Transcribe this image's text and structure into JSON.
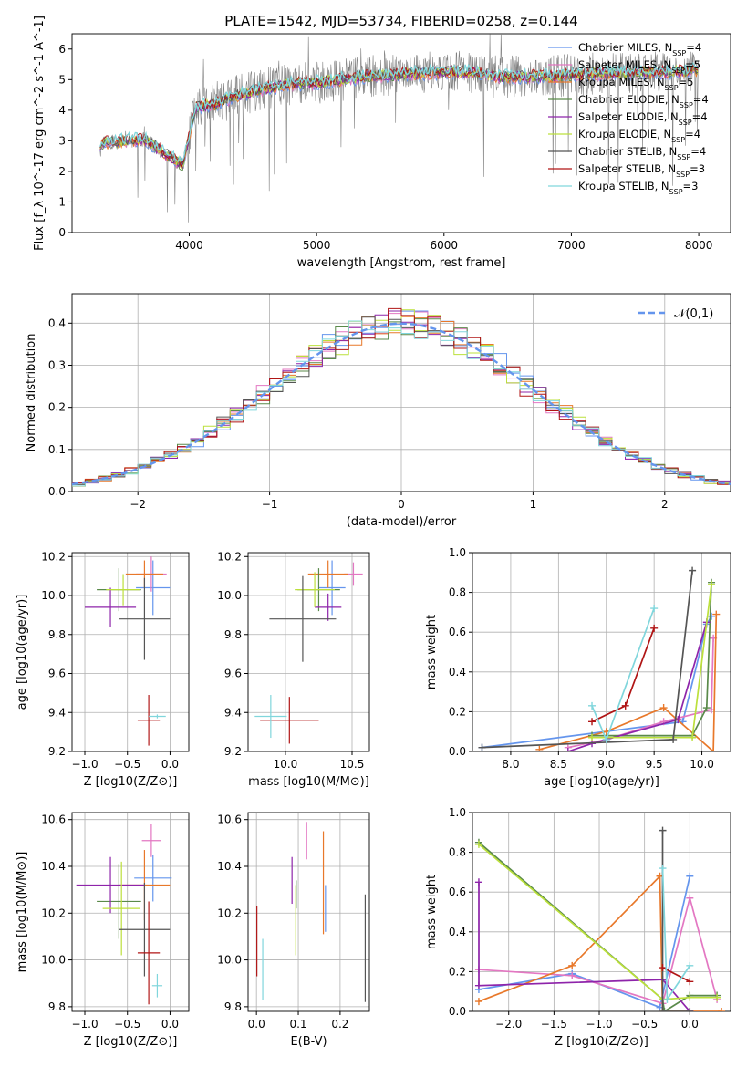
{
  "title": "PLATE=1542, MJD=53734, FIBERID=0258, z=0.144",
  "colors": {
    "chabrier_miles": "#6495ED",
    "salpeter_miles": "#E377C2",
    "kroupa_miles": "#E8782A",
    "chabrier_elodie": "#5A8A4A",
    "salpeter_elodie": "#8E24AA",
    "kroupa_elodie": "#BCE03C",
    "chabrier_stelib": "#555555",
    "salpeter_stelib": "#B01515",
    "kroupa_stelib": "#80D6DC",
    "data": "#808080",
    "grid": "#B0B0B0"
  },
  "chart_data": [
    {
      "id": "spectrum",
      "type": "line",
      "xlabel": "wavelength [Angstrom, rest frame]",
      "ylabel": "Flux [f_λ 10^-17 erg cm^-2 s^-1 A^-1]",
      "xlim": [
        3080,
        8250
      ],
      "ylim": [
        0,
        6.5
      ],
      "xticks": [
        "4000",
        "5000",
        "6000",
        "7000",
        "8000"
      ],
      "yticks": [
        "0",
        "1",
        "2",
        "3",
        "4",
        "5",
        "6"
      ],
      "legend_position": "top-right",
      "continuum": {
        "x": [
          3300,
          3500,
          3650,
          3800,
          3950,
          4050,
          4200,
          4400,
          4600,
          4800,
          5000,
          5200,
          5400,
          5600,
          5800,
          6000,
          6200,
          6400,
          6600,
          6800,
          7000,
          7200,
          7400,
          7600,
          7800,
          8000
        ],
        "y": [
          2.9,
          3.0,
          3.05,
          2.6,
          2.2,
          4.1,
          4.2,
          4.5,
          4.7,
          4.85,
          4.9,
          5.0,
          5.1,
          5.15,
          5.2,
          5.25,
          5.25,
          5.1,
          5.1,
          5.1,
          5.15,
          5.2,
          5.2,
          5.25,
          5.25,
          5.3
        ]
      },
      "legend": [
        {
          "label": "Chabrier MILES",
          "nssp": "4",
          "color_key": "chabrier_miles"
        },
        {
          "label": "Salpeter MILES",
          "nssp": "5",
          "color_key": "salpeter_miles"
        },
        {
          "label": "Kroupa MILES",
          "nssp": "5",
          "color_key": "kroupa_miles"
        },
        {
          "label": "Chabrier ELODIE",
          "nssp": "4",
          "color_key": "chabrier_elodie"
        },
        {
          "label": "Salpeter ELODIE",
          "nssp": "4",
          "color_key": "salpeter_elodie"
        },
        {
          "label": "Kroupa ELODIE",
          "nssp": "4",
          "color_key": "kroupa_elodie"
        },
        {
          "label": "Chabrier STELIB",
          "nssp": "4",
          "color_key": "chabrier_stelib"
        },
        {
          "label": "Salpeter STELIB",
          "nssp": "3",
          "color_key": "salpeter_stelib"
        },
        {
          "label": "Kroupa STELIB",
          "nssp": "3",
          "color_key": "kroupa_stelib"
        }
      ]
    },
    {
      "id": "residuals",
      "type": "histogram",
      "xlabel": "(data-model)/error",
      "ylabel": "Normed distribution",
      "xlim": [
        -2.5,
        2.5
      ],
      "ylim": [
        0,
        0.47
      ],
      "xticks": [
        "−2",
        "−1",
        "0",
        "1",
        "2"
      ],
      "yticks": [
        "0.0",
        "0.1",
        "0.2",
        "0.3",
        "0.4"
      ],
      "bin_width": 0.1,
      "legend": [
        {
          "label": "𝒩(0,1)",
          "style": "dashed",
          "color_key": "chabrier_miles"
        }
      ]
    },
    {
      "id": "age_vs_Z",
      "type": "errorbar",
      "xlabel": "Z [log10(Z/Z⊙)]",
      "ylabel": "age [log10(age/yr)]",
      "xlim": [
        -1.15,
        0.22
      ],
      "ylim": [
        9.2,
        10.22
      ],
      "xticks": [
        "−1.0",
        "−0.5",
        "0.0"
      ],
      "yticks": [
        "9.2",
        "9.4",
        "9.6",
        "9.8",
        "10.0",
        "10.2"
      ],
      "points": [
        {
          "c": "chabrier_miles",
          "x": -0.2,
          "xerr": 0.2,
          "y": 10.04,
          "yerr": 0.14
        },
        {
          "c": "salpeter_miles",
          "x": -0.22,
          "xerr": 0.18,
          "y": 10.11,
          "yerr": 0.09
        },
        {
          "c": "kroupa_miles",
          "x": -0.3,
          "xerr": 0.22,
          "y": 10.11,
          "yerr": 0.07
        },
        {
          "c": "chabrier_elodie",
          "x": -0.6,
          "xerr": 0.26,
          "y": 10.03,
          "yerr": 0.11
        },
        {
          "c": "salpeter_elodie",
          "x": -0.7,
          "xerr": 0.3,
          "y": 9.94,
          "yerr": 0.1
        },
        {
          "c": "kroupa_elodie",
          "x": -0.55,
          "xerr": 0.2,
          "y": 10.03,
          "yerr": 0.08
        },
        {
          "c": "chabrier_stelib",
          "x": -0.3,
          "xerr": 0.3,
          "y": 9.88,
          "yerr": 0.21
        },
        {
          "c": "salpeter_stelib",
          "x": -0.25,
          "xerr": 0.13,
          "y": 9.36,
          "yerr": 0.13
        },
        {
          "c": "kroupa_stelib",
          "x": -0.15,
          "xerr": 0.1,
          "y": 9.38,
          "yerr": 0.01
        }
      ]
    },
    {
      "id": "age_vs_mass",
      "type": "errorbar",
      "xlabel": "mass [log10(M/M⊙)]",
      "ylabel": "",
      "xlim": [
        9.72,
        10.63
      ],
      "ylim": [
        9.2,
        10.22
      ],
      "xticks": [
        "9.5",
        "10.0",
        "10.5"
      ],
      "yticks": [
        "9.2",
        "9.4",
        "9.6",
        "9.8",
        "10.0",
        "10.2"
      ],
      "points": [
        {
          "c": "chabrier_miles",
          "x": 10.35,
          "xerr": 0.1,
          "y": 10.04,
          "yerr": 0.14
        },
        {
          "c": "salpeter_miles",
          "x": 10.51,
          "xerr": 0.07,
          "y": 10.11,
          "yerr": 0.06
        },
        {
          "c": "kroupa_miles",
          "x": 10.32,
          "xerr": 0.15,
          "y": 10.11,
          "yerr": 0.07
        },
        {
          "c": "chabrier_elodie",
          "x": 10.25,
          "xerr": 0.16,
          "y": 10.03,
          "yerr": 0.11
        },
        {
          "c": "salpeter_elodie",
          "x": 10.32,
          "xerr": 0.1,
          "y": 9.94,
          "yerr": 0.07
        },
        {
          "c": "kroupa_elodie",
          "x": 10.22,
          "xerr": 0.15,
          "y": 10.03,
          "yerr": 0.09
        },
        {
          "c": "chabrier_stelib",
          "x": 10.13,
          "xerr": 0.25,
          "y": 9.88,
          "yerr": 0.22
        },
        {
          "c": "salpeter_stelib",
          "x": 10.03,
          "xerr": 0.22,
          "y": 9.36,
          "yerr": 0.12
        },
        {
          "c": "kroupa_stelib",
          "x": 9.89,
          "xerr": 0.12,
          "y": 9.38,
          "yerr": 0.11
        }
      ]
    },
    {
      "id": "weight_vs_age",
      "type": "line",
      "xlabel": "age [log10(age/yr)]",
      "ylabel": "mass weight",
      "xlim": [
        7.6,
        10.3
      ],
      "ylim": [
        0,
        1
      ],
      "xticks": [
        "8.0",
        "8.5",
        "9.0",
        "9.5",
        "10.0"
      ],
      "yticks": [
        "0.0",
        "0.2",
        "0.4",
        "0.6",
        "0.8",
        "1.0"
      ],
      "series": [
        {
          "c": "chabrier_miles",
          "x": [
            7.7,
            9.8,
            10.05,
            10.1
          ],
          "y": [
            0.02,
            0.15,
            0.64,
            0.68
          ]
        },
        {
          "c": "salpeter_miles",
          "x": [
            8.6,
            9.0,
            9.6,
            10.1,
            10.12
          ],
          "y": [
            0.02,
            0.06,
            0.15,
            0.21,
            0.57
          ]
        },
        {
          "c": "kroupa_miles",
          "x": [
            8.3,
            9.0,
            9.6,
            10.12,
            10.15
          ],
          "y": [
            0.01,
            0.1,
            0.22,
            0.0,
            0.69
          ]
        },
        {
          "c": "chabrier_elodie",
          "x": [
            8.85,
            9.9,
            10.05,
            10.1
          ],
          "y": [
            0.08,
            0.08,
            0.22,
            0.85
          ]
        },
        {
          "c": "salpeter_elodie",
          "x": [
            8.6,
            8.85,
            9.75,
            10.05
          ],
          "y": [
            0.0,
            0.04,
            0.16,
            0.65
          ]
        },
        {
          "c": "kroupa_elodie",
          "x": [
            8.85,
            9.9,
            10.1
          ],
          "y": [
            0.07,
            0.07,
            0.84
          ]
        },
        {
          "c": "chabrier_stelib",
          "x": [
            7.7,
            9.7,
            9.9
          ],
          "y": [
            0.02,
            0.06,
            0.91
          ]
        },
        {
          "c": "salpeter_stelib",
          "x": [
            8.85,
            9.2,
            9.5
          ],
          "y": [
            0.15,
            0.23,
            0.62
          ]
        },
        {
          "c": "kroupa_stelib",
          "x": [
            8.85,
            9.0,
            9.5
          ],
          "y": [
            0.23,
            0.06,
            0.72
          ]
        }
      ]
    },
    {
      "id": "mass_vs_Z",
      "type": "errorbar",
      "xlabel": "Z [log10(Z/Z⊙)]",
      "ylabel": "mass [log10(M/M⊙)]",
      "xlim": [
        -1.15,
        0.22
      ],
      "ylim": [
        9.78,
        10.63
      ],
      "xticks": [
        "−1.0",
        "−0.5",
        "0.0"
      ],
      "yticks": [
        "9.8",
        "10.0",
        "10.2",
        "10.4",
        "10.6"
      ],
      "points": [
        {
          "c": "chabrier_miles",
          "x": -0.2,
          "xerr": 0.22,
          "y": 10.35,
          "yerr": 0.1
        },
        {
          "c": "salpeter_miles",
          "x": -0.22,
          "xerr": 0.11,
          "y": 10.51,
          "yerr": 0.07
        },
        {
          "c": "kroupa_miles",
          "x": -0.3,
          "xerr": 0.3,
          "y": 10.32,
          "yerr": 0.15
        },
        {
          "c": "chabrier_elodie",
          "x": -0.6,
          "xerr": 0.26,
          "y": 10.25,
          "yerr": 0.16
        },
        {
          "c": "salpeter_elodie",
          "x": -0.7,
          "xerr": 0.4,
          "y": 10.32,
          "yerr": 0.12
        },
        {
          "c": "kroupa_elodie",
          "x": -0.57,
          "xerr": 0.22,
          "y": 10.22,
          "yerr": 0.2
        },
        {
          "c": "chabrier_stelib",
          "x": -0.3,
          "xerr": 0.3,
          "y": 10.13,
          "yerr": 0.2
        },
        {
          "c": "salpeter_stelib",
          "x": -0.25,
          "xerr": 0.13,
          "y": 10.03,
          "yerr": 0.22
        },
        {
          "c": "kroupa_stelib",
          "x": -0.15,
          "xerr": 0.06,
          "y": 9.89,
          "yerr": 0.05
        }
      ]
    },
    {
      "id": "mass_vs_ebv",
      "type": "errorbar",
      "xlabel": "E(B-V)",
      "ylabel": "",
      "xlim": [
        -0.02,
        0.27
      ],
      "ylim": [
        9.78,
        10.63
      ],
      "xticks": [
        "0.0",
        "0.1",
        "0.2"
      ],
      "yticks": [
        "9.8",
        "10.0",
        "10.2",
        "10.4",
        "10.6"
      ],
      "points": [
        {
          "c": "chabrier_miles",
          "x": 0.165,
          "y": 10.22,
          "yerr": 0.1
        },
        {
          "c": "salpeter_miles",
          "x": 0.12,
          "y": 10.51,
          "yerr": 0.08
        },
        {
          "c": "kroupa_miles",
          "x": 0.16,
          "y": 10.33,
          "yerr": 0.22
        },
        {
          "c": "chabrier_elodie",
          "x": 0.095,
          "y": 10.28,
          "yerr": 0.06
        },
        {
          "c": "salpeter_elodie",
          "x": 0.085,
          "y": 10.34,
          "yerr": 0.1
        },
        {
          "c": "kroupa_elodie",
          "x": 0.094,
          "y": 10.17,
          "yerr": 0.15
        },
        {
          "c": "chabrier_stelib",
          "x": 0.26,
          "y": 10.05,
          "yerr": 0.23
        },
        {
          "c": "salpeter_stelib",
          "x": 0.001,
          "y": 10.08,
          "yerr": 0.15
        },
        {
          "c": "kroupa_stelib",
          "x": 0.015,
          "y": 9.96,
          "yerr": 0.13
        }
      ]
    },
    {
      "id": "weight_vs_Z",
      "type": "line",
      "xlabel": "Z [log10(Z/Z⊙)]",
      "ylabel": "mass weight",
      "xlim": [
        -2.4,
        0.45
      ],
      "ylim": [
        0,
        1
      ],
      "xticks": [
        "−2.0",
        "−1.5",
        "−1.0",
        "−0.5",
        "0.0"
      ],
      "yticks": [
        "0.0",
        "0.2",
        "0.4",
        "0.6",
        "0.8",
        "1.0"
      ],
      "series": [
        {
          "c": "chabrier_miles",
          "x": [
            -2.33,
            -1.3,
            -0.33,
            0.0
          ],
          "y": [
            0.11,
            0.19,
            0.02,
            0.68
          ]
        },
        {
          "c": "salpeter_miles",
          "x": [
            -2.33,
            -1.3,
            -0.3,
            0.0,
            0.3
          ],
          "y": [
            0.21,
            0.18,
            0.04,
            0.57,
            0.06
          ]
        },
        {
          "c": "kroupa_miles",
          "x": [
            -2.33,
            -1.3,
            -0.33,
            -0.3,
            0.35
          ],
          "y": [
            0.05,
            0.23,
            0.68,
            0.0,
            0.0
          ]
        },
        {
          "c": "chabrier_elodie",
          "x": [
            -2.33,
            -0.3,
            -0.28,
            0.0,
            0.3
          ],
          "y": [
            0.85,
            0.06,
            0.0,
            0.08,
            0.08
          ]
        },
        {
          "c": "salpeter_elodie",
          "x": [
            -2.33,
            -2.33,
            -0.3,
            0.0
          ],
          "y": [
            0.65,
            0.13,
            0.16,
            0.0
          ]
        },
        {
          "c": "kroupa_elodie",
          "x": [
            -2.33,
            -0.3,
            0.0,
            0.3
          ],
          "y": [
            0.84,
            0.06,
            0.07,
            0.07
          ]
        },
        {
          "c": "chabrier_stelib",
          "x": [
            -0.3,
            -0.3,
            0.0
          ],
          "y": [
            0.91,
            0.0,
            0.0
          ]
        },
        {
          "c": "salpeter_stelib",
          "x": [
            -0.3,
            0.0
          ],
          "y": [
            0.22,
            0.15
          ]
        },
        {
          "c": "kroupa_stelib",
          "x": [
            -0.3,
            -0.25,
            0.0
          ],
          "y": [
            0.72,
            0.06,
            0.23
          ]
        }
      ]
    }
  ]
}
